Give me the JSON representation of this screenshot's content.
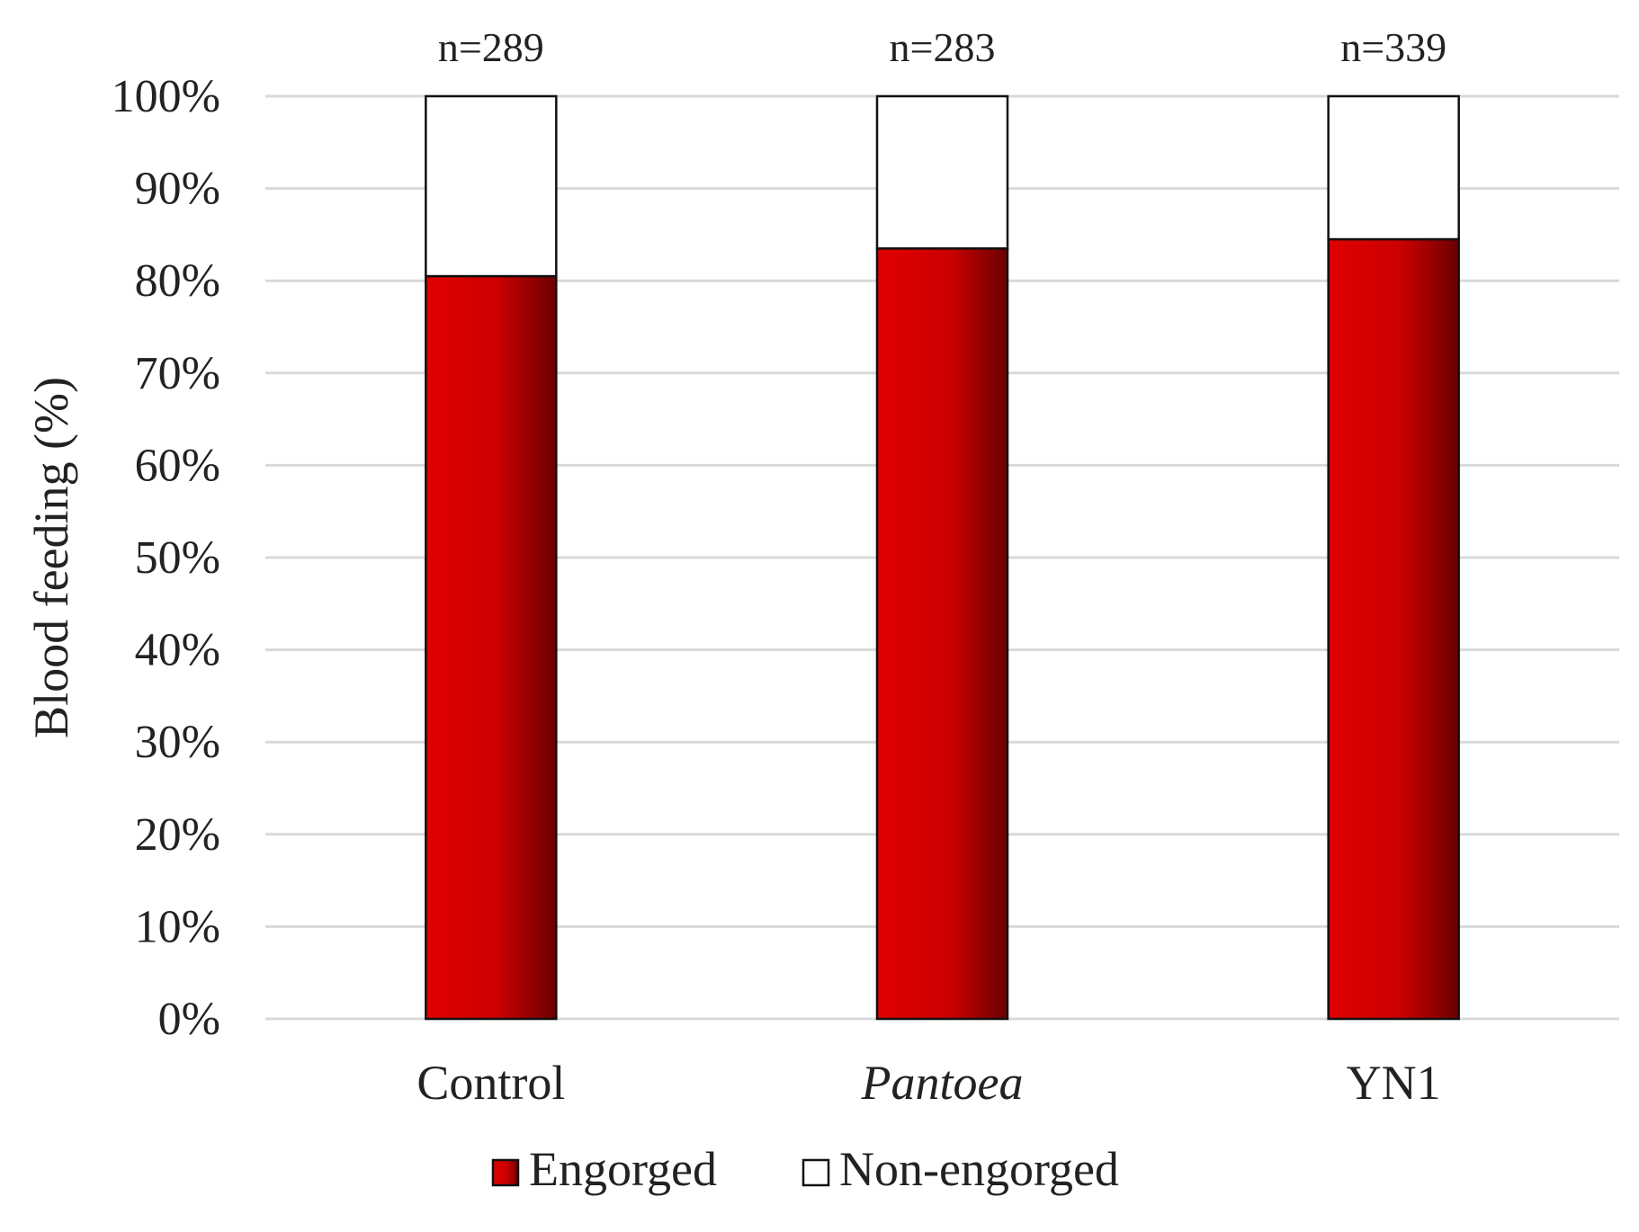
{
  "chart_data": {
    "type": "bar",
    "stacked": true,
    "categories": [
      "Control",
      "Pantoea",
      "YN1"
    ],
    "italic_categories": [
      "Pantoea"
    ],
    "sample_sizes": [
      "n=289",
      "n=283",
      "n=339"
    ],
    "series": [
      {
        "name": "Engorged",
        "values": [
          80.5,
          83.5,
          84.5
        ],
        "color": "#d40000"
      },
      {
        "name": "Non-engorged",
        "values": [
          19.5,
          16.5,
          15.5
        ],
        "color": "#ffffff"
      }
    ],
    "ylabel": "Blood feeding (%)",
    "xlabel": "",
    "ylim": [
      0,
      100
    ],
    "yticks": [
      "0%",
      "10%",
      "20%",
      "30%",
      "40%",
      "50%",
      "60%",
      "70%",
      "80%",
      "90%",
      "100%"
    ],
    "grid": true,
    "legend_position": "bottom-center"
  }
}
